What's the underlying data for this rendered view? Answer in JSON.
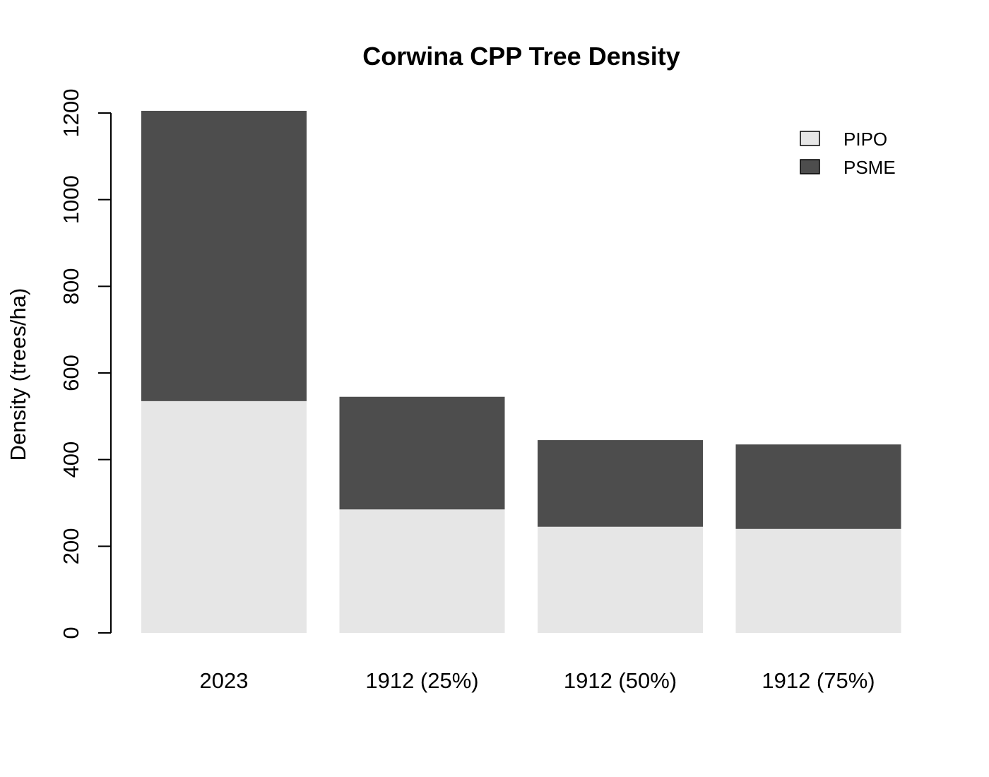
{
  "chart_data": {
    "type": "bar",
    "stacked": true,
    "title": "Corwina CPP Tree Density",
    "xlabel": "",
    "ylabel": "Density (trees/ha)",
    "ylim": [
      0,
      1200
    ],
    "yticks": [
      0,
      200,
      400,
      600,
      800,
      1000,
      1200
    ],
    "grid": false,
    "legend_position": "top-right",
    "categories": [
      "2023",
      "1912 (25%)",
      "1912 (50%)",
      "1912 (75%)"
    ],
    "series": [
      {
        "name": "PIPO",
        "color": "#e6e6e6",
        "values": [
          535,
          285,
          245,
          240
        ]
      },
      {
        "name": "PSME",
        "color": "#4d4d4d",
        "values": [
          670,
          260,
          200,
          195
        ]
      }
    ]
  }
}
